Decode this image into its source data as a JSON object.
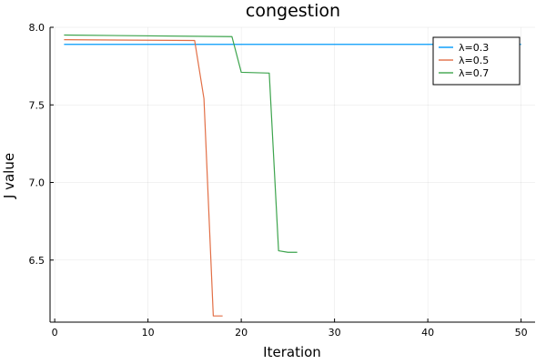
{
  "chart_data": {
    "type": "line",
    "title": "congestion",
    "xlabel": "Iteration",
    "ylabel": "J value",
    "xlim": [
      -0.5,
      51.5
    ],
    "ylim": [
      6.1,
      8.0
    ],
    "xticks": [
      0,
      10,
      20,
      30,
      40,
      50
    ],
    "yticks": [
      6.5,
      7.0,
      7.5,
      8.0
    ],
    "xtick_labels": [
      "0",
      "10",
      "20",
      "30",
      "40",
      "50"
    ],
    "ytick_labels": [
      "6.5",
      "7.0",
      "7.5",
      "8.0"
    ],
    "grid": true,
    "legend_position": "top-right",
    "series": [
      {
        "name": "λ=0.3",
        "color": "#009AFA",
        "x": [
          1,
          50
        ],
        "y": [
          7.89,
          7.89
        ]
      },
      {
        "name": "λ=0.5",
        "color": "#E26F46",
        "x": [
          1,
          15,
          16,
          17,
          18
        ],
        "y": [
          7.92,
          7.915,
          7.54,
          6.14,
          6.14
        ]
      },
      {
        "name": "λ=0.7",
        "color": "#3DA44D",
        "x": [
          1,
          19,
          20,
          23,
          24,
          25,
          26
        ],
        "y": [
          7.95,
          7.94,
          7.71,
          7.705,
          6.56,
          6.55,
          6.55
        ]
      }
    ]
  }
}
